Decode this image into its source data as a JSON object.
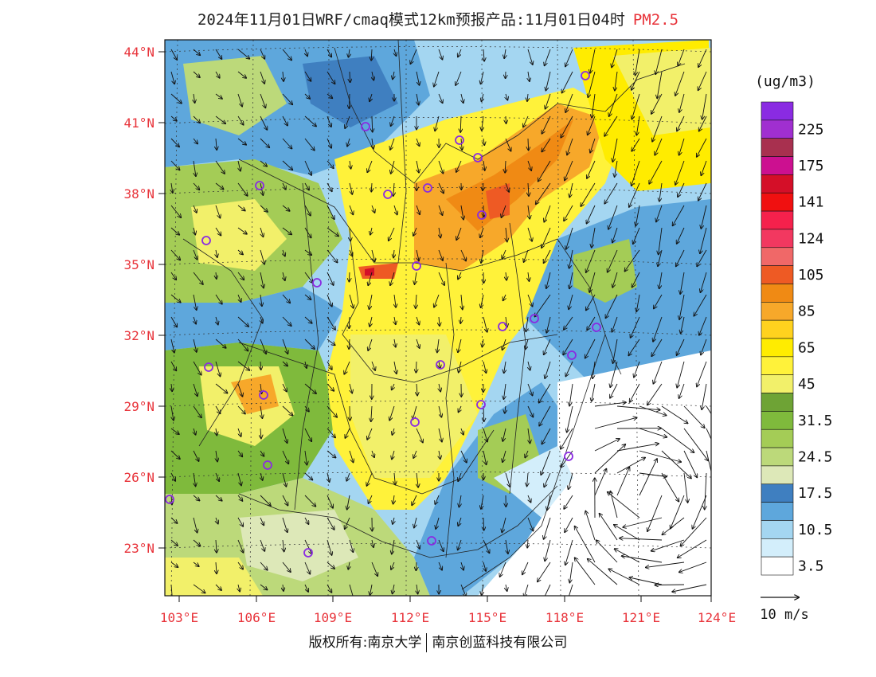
{
  "header": {
    "title": "2024年11月01日WRF/cmaq模式12km预报产品:11月01日04时",
    "pollutant": "PM2.5"
  },
  "map": {
    "lat_labels": [
      "44°N",
      "41°N",
      "38°N",
      "35°N",
      "32°N",
      "29°N",
      "26°N",
      "23°N"
    ],
    "lon_labels": [
      "103°E",
      "106°E",
      "109°E",
      "112°E",
      "115°E",
      "118°E",
      "121°E",
      "124°E"
    ],
    "colors": {
      "axis_label": "#e8333a",
      "station": "#8a2be2"
    }
  },
  "legend": {
    "unit": "(ug/m3)",
    "levels": [
      {
        "label": "",
        "color": "#8a2be2"
      },
      {
        "label": "225",
        "color": "#a02fd0"
      },
      {
        "label": "",
        "color": "#a8304f"
      },
      {
        "label": "175",
        "color": "#cc1090"
      },
      {
        "label": "",
        "color": "#d40f28"
      },
      {
        "label": "141",
        "color": "#f01010"
      },
      {
        "label": "",
        "color": "#f5214c"
      },
      {
        "label": "124",
        "color": "#f23860"
      },
      {
        "label": "",
        "color": "#f06868"
      },
      {
        "label": "105",
        "color": "#ee5a24"
      },
      {
        "label": "",
        "color": "#f08a14"
      },
      {
        "label": "85",
        "color": "#f7a82a"
      },
      {
        "label": "",
        "color": "#ffd21e"
      },
      {
        "label": "65",
        "color": "#ffec00"
      },
      {
        "label": "",
        "color": "#fff23a"
      },
      {
        "label": "45",
        "color": "#f2f06a"
      },
      {
        "label": "",
        "color": "#6ea335"
      },
      {
        "label": "31.5",
        "color": "#7fba3c"
      },
      {
        "label": "",
        "color": "#a4cc56"
      },
      {
        "label": "24.5",
        "color": "#bcd97a"
      },
      {
        "label": "",
        "color": "#dde8b8"
      },
      {
        "label": "17.5",
        "color": "#3f7fc0"
      },
      {
        "label": "",
        "color": "#5ea7dc"
      },
      {
        "label": "10.5",
        "color": "#a4d6f1"
      },
      {
        "label": "",
        "color": "#d3eefb"
      },
      {
        "label": "3.5",
        "color": "#ffffff"
      }
    ]
  },
  "wind_reference": {
    "label": "10 m/s"
  },
  "footer": {
    "owner": "版权所有:南京大学",
    "company": "南京创蓝科技有限公司"
  }
}
